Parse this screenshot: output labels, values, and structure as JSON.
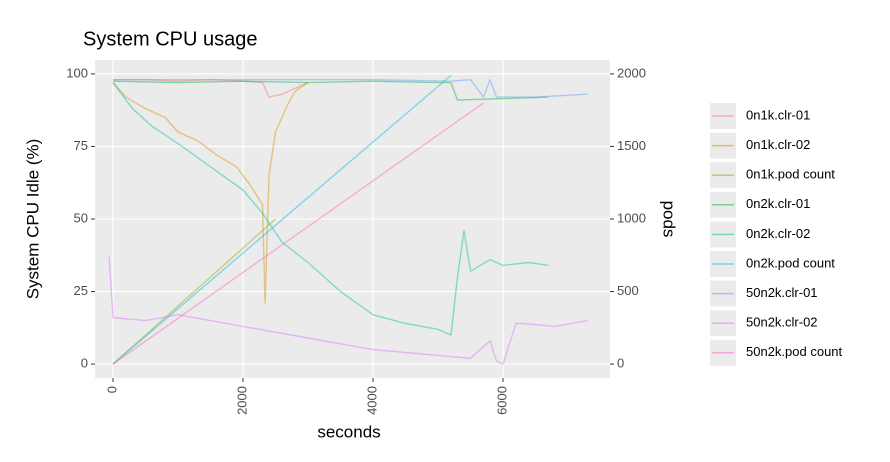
{
  "chart_data": {
    "type": "line",
    "title": "System CPU usage",
    "x_label": "seconds",
    "y_label": "System CPU Idle (%)",
    "y2_label": "pods",
    "xlim": [
      -277,
      7646
    ],
    "xticks": [
      0,
      2000,
      4000,
      6000
    ],
    "ylim": [
      -4.8,
      104.8
    ],
    "yticks": [
      0,
      25,
      50,
      75,
      100
    ],
    "y2lim": [
      -96,
      2096
    ],
    "y2ticks": [
      0,
      500,
      1000,
      1500,
      2000
    ],
    "grid": true,
    "legend": "right",
    "series": [
      {
        "name": "0n1k.clr-01",
        "color": "#F8766D",
        "x": [
          0,
          500,
          1000,
          1500,
          2000,
          2300,
          2400,
          2600,
          2800,
          3000
        ],
        "values": [
          98,
          98,
          97.5,
          98,
          97.5,
          97,
          92,
          93,
          95,
          97
        ]
      },
      {
        "name": "0n1k.clr-02",
        "color": "#D39200",
        "x": [
          0,
          200,
          500,
          800,
          1000,
          1300,
          1600,
          1900,
          2100,
          2300,
          2340,
          2400,
          2500,
          2600,
          2700,
          2800,
          3000
        ],
        "values": [
          97,
          92,
          88,
          85,
          80,
          77,
          72,
          68,
          62,
          55,
          21,
          65,
          80,
          85,
          90,
          94,
          97
        ]
      },
      {
        "name": "0n1k.pod count",
        "color": "#93AA00",
        "axis": "y2",
        "x": [
          0,
          2500
        ],
        "values": [
          0,
          1000
        ]
      },
      {
        "name": "0n2k.clr-01",
        "color": "#00BA38",
        "x": [
          0,
          1000,
          2000,
          3000,
          4000,
          5000,
          5200,
          5300,
          6000,
          6700
        ],
        "values": [
          97.5,
          97,
          97.5,
          97,
          97.5,
          97,
          97,
          91,
          91.5,
          92
        ]
      },
      {
        "name": "0n2k.clr-02",
        "color": "#00C19F",
        "x": [
          0,
          300,
          600,
          1000,
          1500,
          2000,
          2300,
          2600,
          3000,
          3500,
          4000,
          4500,
          5000,
          5200,
          5300,
          5400,
          5500,
          5800,
          6000,
          6400,
          6700
        ],
        "values": [
          97,
          88,
          82,
          76,
          68,
          60,
          52,
          42,
          35,
          25,
          17,
          14,
          12,
          10,
          30,
          46,
          32,
          36,
          34,
          35,
          34
        ]
      },
      {
        "name": "0n2k.pod count",
        "color": "#00B9E3",
        "axis": "y2",
        "x": [
          0,
          5200
        ],
        "values": [
          0,
          1990
        ]
      },
      {
        "name": "50n2k.clr-01",
        "color": "#619CFF",
        "x": [
          0,
          2000,
          4000,
          5200,
          5500,
          5700,
          5800,
          5900,
          6500,
          7300
        ],
        "values": [
          98,
          98,
          98,
          97.5,
          98,
          92,
          98,
          92,
          92,
          93
        ]
      },
      {
        "name": "50n2k.clr-02",
        "color": "#DB72FB",
        "x": [
          -60,
          0,
          500,
          1000,
          1500,
          2000,
          2500,
          3000,
          3500,
          4000,
          4500,
          5000,
          5500,
          5800,
          5900,
          6000,
          6200,
          6300,
          6800,
          7300
        ],
        "values": [
          37,
          16,
          15,
          17,
          15,
          13,
          11,
          9,
          7,
          5,
          4,
          3,
          2,
          8,
          1,
          0,
          14,
          14,
          13,
          15
        ]
      },
      {
        "name": "50n2k.pod count",
        "color": "#FF61C3",
        "axis": "y2",
        "x": [
          0,
          5700
        ],
        "values": [
          0,
          1800
        ]
      }
    ]
  }
}
